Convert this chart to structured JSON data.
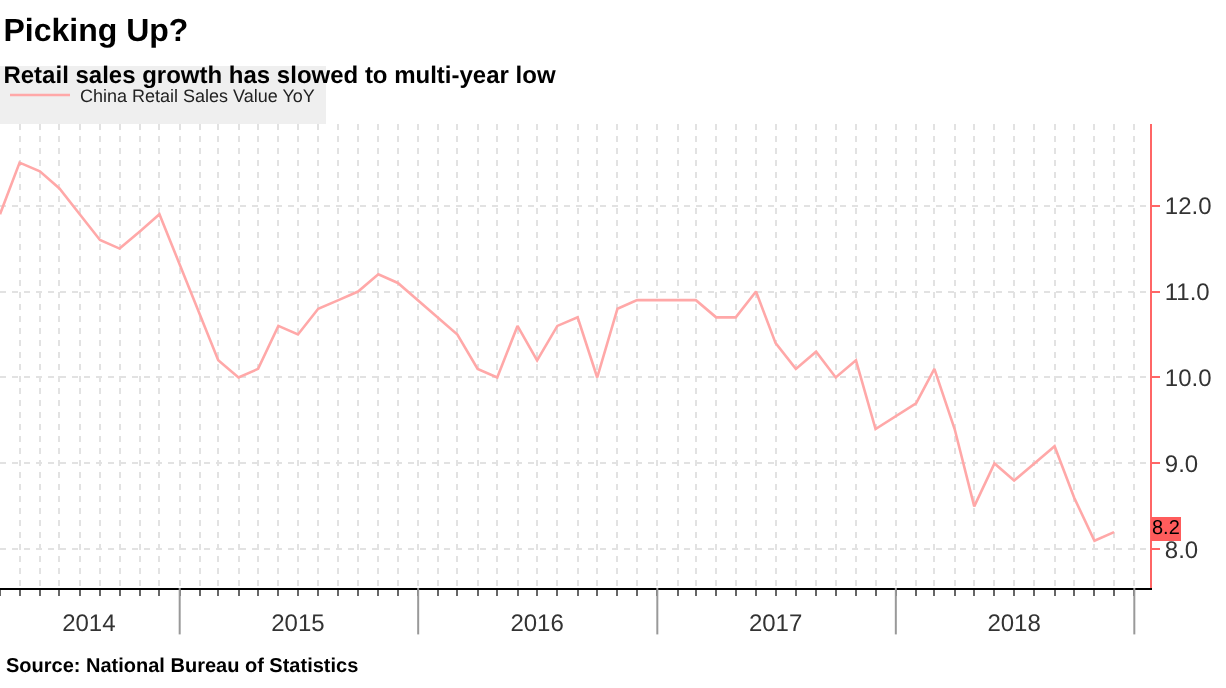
{
  "chart_data": {
    "type": "line",
    "title": "Picking Up?",
    "subtitle": "Retail sales growth has slowed to multi-year low",
    "x": [
      "2014-04",
      "2014-05",
      "2014-06",
      "2014-07",
      "2014-08",
      "2014-09",
      "2014-10",
      "2014-11",
      "2014-12",
      "2015-03",
      "2015-04",
      "2015-05",
      "2015-06",
      "2015-07",
      "2015-08",
      "2015-09",
      "2015-10",
      "2015-11",
      "2015-12",
      "2016-03",
      "2016-04",
      "2016-05",
      "2016-06",
      "2016-07",
      "2016-08",
      "2016-09",
      "2016-10",
      "2016-11",
      "2016-12",
      "2017-03",
      "2017-04",
      "2017-05",
      "2017-06",
      "2017-07",
      "2017-08",
      "2017-09",
      "2017-10",
      "2017-11",
      "2017-12",
      "2018-02",
      "2018-03",
      "2018-04",
      "2018-05",
      "2018-06",
      "2018-07",
      "2018-08",
      "2018-09",
      "2018-10",
      "2018-11",
      "2018-12"
    ],
    "series": [
      {
        "name": "China Retail Sales Value YoY",
        "color": "#ffa8a8",
        "values": [
          11.9,
          12.5,
          12.4,
          12.2,
          11.9,
          11.6,
          11.5,
          11.7,
          11.9,
          10.2,
          10.0,
          10.1,
          10.6,
          10.5,
          10.8,
          10.9,
          11.0,
          11.2,
          11.1,
          10.5,
          10.1,
          10.0,
          10.6,
          10.2,
          10.6,
          10.7,
          10.0,
          10.8,
          10.9,
          10.9,
          10.7,
          10.7,
          11.0,
          10.4,
          10.1,
          10.3,
          10.0,
          10.2,
          9.4,
          9.7,
          10.1,
          9.4,
          8.5,
          9.0,
          8.8,
          9.0,
          9.2,
          8.6,
          8.1,
          8.2
        ]
      }
    ],
    "xlim": [
      "2014-04-01",
      "2019-01-25"
    ],
    "xticks": [
      {
        "value": "2014-08-15",
        "label": "2014"
      },
      {
        "value": "2015-07-01",
        "label": "2015"
      },
      {
        "value": "2016-07-01",
        "label": "2016"
      },
      {
        "value": "2017-07-01",
        "label": "2017"
      },
      {
        "value": "2018-07-01",
        "label": "2018"
      }
    ],
    "ylim": [
      7.55,
      12.95
    ],
    "yticks": [
      {
        "value": 8,
        "label": "8.0"
      },
      {
        "value": 9,
        "label": "9.0"
      },
      {
        "value": 10,
        "label": "10.0"
      },
      {
        "value": 11,
        "label": "11.0"
      },
      {
        "value": 12,
        "label": "12.0"
      }
    ],
    "annotations": [
      {
        "text": "8.2",
        "x": "2018-12",
        "y": 8.2
      },
      "Source: National Bureau of Statistics"
    ],
    "grid": true,
    "legend": "top left",
    "marker": "none",
    "line_style": "solid"
  }
}
